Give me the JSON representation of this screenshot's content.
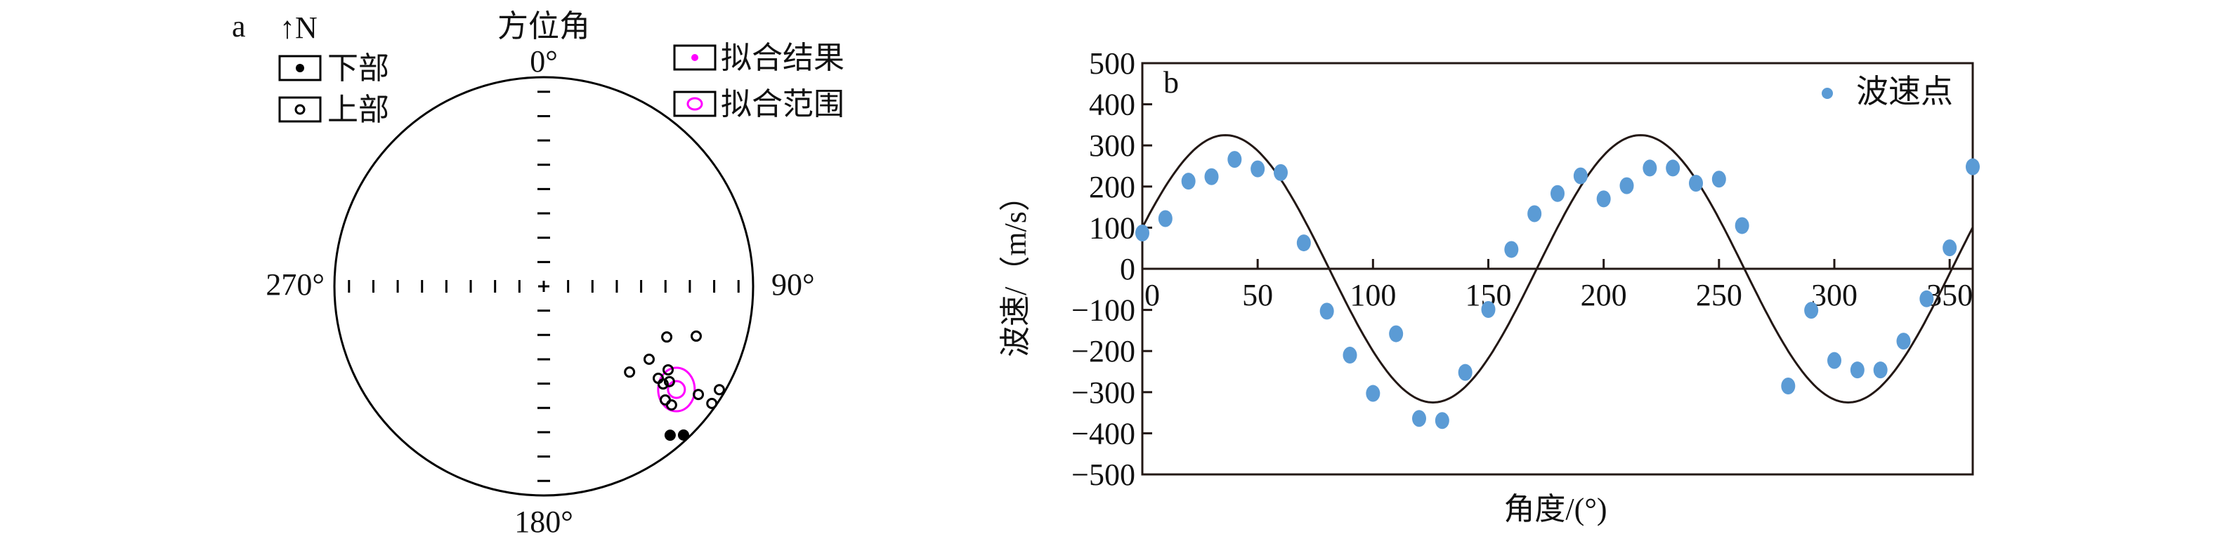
{
  "chart_data": [
    {
      "type": "scatter",
      "panel_label": "a",
      "north_label": "↑N",
      "title": "方位角",
      "direction_labels": {
        "north": "0°",
        "east": "90°",
        "south": "180°",
        "west": "270°"
      },
      "legend": [
        {
          "label": "下部",
          "marker": "filled-circle",
          "color": "#000000"
        },
        {
          "label": "上部",
          "marker": "open-circle",
          "color": "#000000"
        },
        {
          "label": "拟合结果",
          "marker": "filled-dot",
          "color": "#ff00ff"
        },
        {
          "label": "拟合范围",
          "marker": "open-ellipse",
          "color": "#ff00ff"
        }
      ],
      "legend_placement": [
        "top-left",
        "top-right"
      ],
      "lower_points": [
        {
          "azimuth": 139.7,
          "dip": 7.4
        },
        {
          "azimuth": 136.8,
          "dip": 2.8
        }
      ],
      "upper_points": [
        {
          "azimuth": 112.4,
          "dip": 36.6
        },
        {
          "azimuth": 108.1,
          "dip": 24.4
        },
        {
          "azimuth": 124.7,
          "dip": 38.7
        },
        {
          "azimuth": 135.0,
          "dip": 41.6
        },
        {
          "azimuth": 123.9,
          "dip": 29.2
        },
        {
          "azimuth": 128.8,
          "dip": 30.5
        },
        {
          "azimuth": 129.3,
          "dip": 27.2
        },
        {
          "azimuth": 127.2,
          "dip": 25.6
        },
        {
          "azimuth": 125.0,
          "dip": 10.8
        },
        {
          "azimuth": 120.5,
          "dip": 3.0
        },
        {
          "azimuth": 124.9,
          "dip": 2.4
        },
        {
          "azimuth": 133.1,
          "dip": 21.6
        },
        {
          "azimuth": 132.9,
          "dip": 17.8
        }
      ],
      "fit_result": {
        "azimuth": 127.9,
        "dip": 20.8
      }
    },
    {
      "type": "scatter",
      "panel_label": "b",
      "xlabel": "角度/(°)",
      "ylabel": "波速/（m/s）",
      "xlim": [
        0,
        360
      ],
      "ylim": [
        -500,
        500
      ],
      "xticks": [
        0,
        50,
        100,
        150,
        200,
        250,
        300,
        350
      ],
      "yticks": [
        500,
        400,
        300,
        200,
        100,
        0,
        -100,
        -200,
        -300,
        -400,
        -500
      ],
      "grid": false,
      "legend_placement": "top-right",
      "series": [
        {
          "name": "波速点",
          "color": "#5b9bd5",
          "x": [
            0,
            10,
            20,
            30,
            40,
            50,
            60,
            70,
            80,
            90,
            100,
            110,
            120,
            130,
            140,
            150,
            160,
            170,
            180,
            190,
            200,
            210,
            220,
            230,
            240,
            250,
            260,
            280,
            290,
            300,
            310,
            320,
            330,
            340,
            350,
            360
          ],
          "y": [
            87,
            122,
            213,
            224,
            266,
            243,
            234,
            63,
            -103,
            -210,
            -303,
            -158,
            -364,
            -369,
            -252,
            -99,
            47,
            134,
            183,
            226,
            170,
            202,
            245,
            245,
            208,
            218,
            105,
            -285,
            -101,
            -223,
            -246,
            -246,
            -176,
            -73,
            51,
            248
          ]
        },
        {
          "type": "line",
          "color": "#231815",
          "function": "325*sin(2x+18°)",
          "amplitude": 325,
          "period_deg": 180,
          "phase_deg": 18
        }
      ]
    }
  ]
}
